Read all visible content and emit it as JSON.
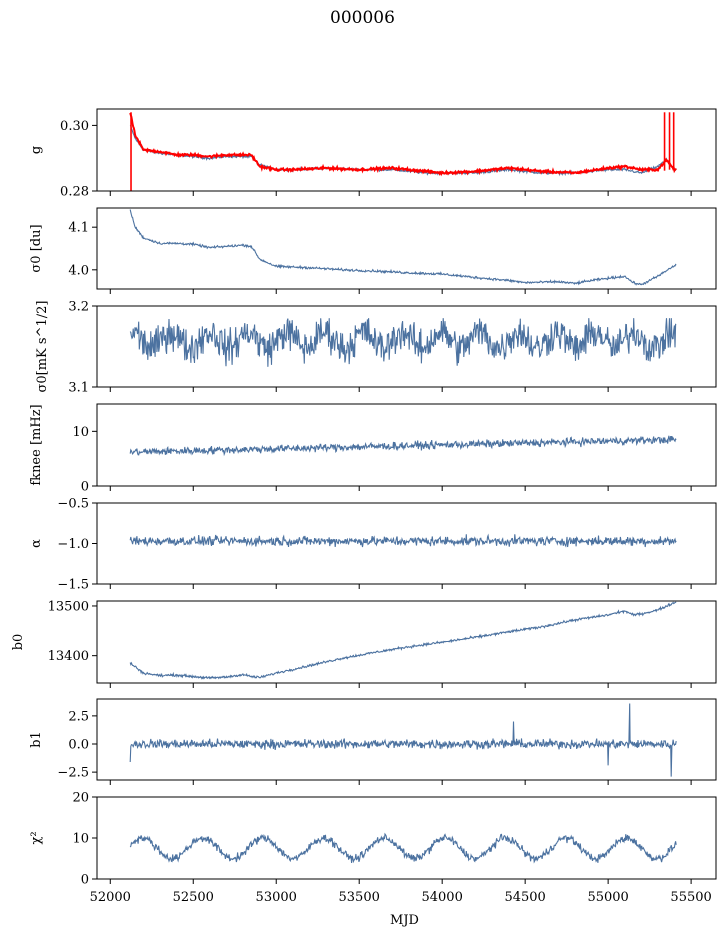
{
  "figure": {
    "title": "000006",
    "xlabel": "MJD"
  },
  "chart_data": {
    "type": "line",
    "x_ticks": [
      52000,
      52500,
      53000,
      53500,
      54000,
      54500,
      55000,
      55500
    ],
    "xlim": [
      51920,
      55650
    ],
    "x_range": [
      52120,
      55410
    ],
    "colors": {
      "series": "#4c72a0",
      "overlay": "#ff0000"
    },
    "panels": [
      {
        "ylabel": "g",
        "ylim": [
          0.28,
          0.305
        ],
        "yticks": [
          0.28,
          0.3
        ],
        "ytick_labels": [
          "0.28",
          "0.30"
        ],
        "series": {
          "x": [
            52120,
            52150,
            52200,
            52300,
            52400,
            52500,
            52600,
            52700,
            52850,
            52900,
            53000,
            53100,
            53300,
            53500,
            53700,
            53900,
            54000,
            54200,
            54400,
            54600,
            54800,
            55000,
            55100,
            55200,
            55300,
            55350,
            55400
          ],
          "y": [
            0.3,
            0.296,
            0.2925,
            0.2915,
            0.291,
            0.2905,
            0.29,
            0.2905,
            0.2905,
            0.288,
            0.2865,
            0.2865,
            0.287,
            0.2865,
            0.2865,
            0.2855,
            0.2855,
            0.2855,
            0.2865,
            0.2855,
            0.2855,
            0.2865,
            0.2865,
            0.2855,
            0.2875,
            0.2895,
            0.2865
          ]
        },
        "overlay": {
          "x": [
            52120,
            52150,
            52200,
            52300,
            52400,
            52500,
            52600,
            52700,
            52850,
            52900,
            53000,
            53100,
            53300,
            53500,
            53700,
            53900,
            54000,
            54200,
            54400,
            54600,
            54800,
            55000,
            55100,
            55200,
            55300,
            55350,
            55400
          ],
          "y": [
            0.304,
            0.297,
            0.2925,
            0.292,
            0.291,
            0.291,
            0.2905,
            0.291,
            0.291,
            0.2875,
            0.2865,
            0.2865,
            0.287,
            0.2865,
            0.287,
            0.286,
            0.2855,
            0.286,
            0.287,
            0.286,
            0.2855,
            0.287,
            0.2875,
            0.2865,
            0.2865,
            0.2895,
            0.2865
          ]
        }
      },
      {
        "ylabel": "σ0 [du]",
        "ylim": [
          3.955,
          4.145
        ],
        "yticks": [
          4.0,
          4.1
        ],
        "ytick_labels": [
          "4.0",
          "4.1"
        ],
        "series": {
          "x": [
            52120,
            52150,
            52200,
            52300,
            52400,
            52500,
            52600,
            52700,
            52800,
            52850,
            52900,
            53000,
            53200,
            53400,
            53600,
            53800,
            54000,
            54200,
            54400,
            54500,
            54700,
            54800,
            54900,
            55000,
            55100,
            55150,
            55200,
            55300,
            55400
          ],
          "y": [
            4.14,
            4.1,
            4.075,
            4.062,
            4.062,
            4.06,
            4.052,
            4.055,
            4.058,
            4.055,
            4.025,
            4.008,
            4.005,
            4.0,
            3.997,
            3.993,
            3.99,
            3.982,
            3.975,
            3.97,
            3.972,
            3.968,
            3.975,
            3.98,
            3.985,
            3.97,
            3.965,
            3.985,
            4.01
          ]
        }
      },
      {
        "ylabel": "σ0[mK s^1/2]",
        "ylim": [
          3.1,
          3.2
        ],
        "yticks": [
          3.1,
          3.2
        ],
        "ytick_labels": [
          "3.1",
          "3.2"
        ],
        "series": {
          "mean": 3.158,
          "noise": 0.012,
          "low": 3.125,
          "high": 3.185
        }
      },
      {
        "ylabel": "fknee [mHz]",
        "ylim": [
          0,
          15
        ],
        "yticks": [
          0,
          10
        ],
        "ytick_labels": [
          "0",
          "10"
        ],
        "series": {
          "start": 6.2,
          "end": 8.5,
          "noise": 0.6
        }
      },
      {
        "ylabel": "α",
        "ylim": [
          -1.5,
          -0.5
        ],
        "yticks": [
          -1.5,
          -1.0,
          -0.5
        ],
        "ytick_labels": [
          "−1.5",
          "−1.0",
          "−0.5"
        ],
        "series": {
          "mean": -0.97,
          "noise": 0.05
        }
      },
      {
        "ylabel": "b0",
        "ylim": [
          13345,
          13510
        ],
        "yticks": [
          13400,
          13500
        ],
        "ytick_labels": [
          "13400",
          "13500"
        ],
        "series": {
          "x": [
            52120,
            52200,
            52300,
            52400,
            52500,
            52600,
            52700,
            52800,
            52850,
            52900,
            53000,
            53200,
            53400,
            53600,
            53800,
            54000,
            54200,
            54400,
            54600,
            54800,
            55000,
            55100,
            55150,
            55200,
            55300,
            55400
          ],
          "y": [
            13385,
            13365,
            13360,
            13361,
            13358,
            13355,
            13357,
            13362,
            13358,
            13356,
            13365,
            13380,
            13395,
            13407,
            13418,
            13427,
            13437,
            13448,
            13458,
            13472,
            13482,
            13490,
            13482,
            13484,
            13492,
            13507
          ]
        }
      },
      {
        "ylabel": "b1",
        "ylim": [
          -3.2,
          4.0
        ],
        "yticks": [
          -2.5,
          0.0,
          2.5
        ],
        "ytick_labels": [
          "−2.5",
          "0.0",
          "2.5"
        ],
        "series": {
          "mean": 0.0,
          "noise": 0.35
        }
      },
      {
        "ylabel": "χ²",
        "ylim": [
          0,
          20
        ],
        "yticks": [
          0,
          10,
          20
        ],
        "ytick_labels": [
          "0",
          "10",
          "20"
        ],
        "series": {
          "mean": 7.5,
          "amplitude": 2.5,
          "period": 365,
          "noise": 0.8
        }
      }
    ]
  }
}
